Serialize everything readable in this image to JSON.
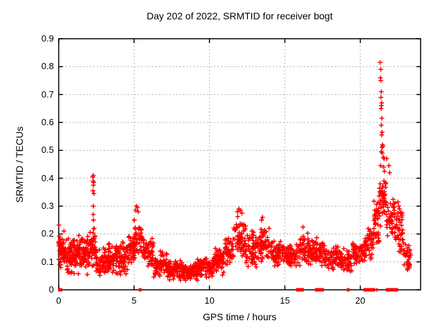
{
  "title": "Day 202 of 2022, SRMTID for receiver bogt",
  "axes": {
    "xlabel": "GPS time / hours",
    "ylabel": "SRMTID / TECUs",
    "xtick_labels": [
      "0",
      "5",
      "10",
      "15",
      "20"
    ],
    "ytick_labels": [
      "0",
      "0.1",
      "0.2",
      "0.3",
      "0.4",
      "0.5",
      "0.6",
      "0.7",
      "0.8",
      "0.9"
    ]
  },
  "colors": {
    "marker": "#ff0000",
    "grid": "#a9a9a9",
    "border": "#000000",
    "text": "#000000",
    "background": "#ffffff"
  },
  "chart_data": {
    "type": "scatter",
    "title": "Day 202 of 2022, SRMTID for receiver bogt",
    "xlabel": "GPS time / hours",
    "ylabel": "SRMTID / TECUs",
    "xlim": [
      0,
      24
    ],
    "ylim": [
      0,
      0.9
    ],
    "xticks": [
      0,
      5,
      10,
      15,
      20
    ],
    "yticks": [
      0,
      0.1,
      0.2,
      0.3,
      0.4,
      0.5,
      0.6,
      0.7,
      0.8,
      0.9
    ],
    "grid": true,
    "legend": false,
    "marker": "+",
    "marker_color": "#ff0000",
    "seed": 42,
    "band_segments_comment": "dense noisy scatter described as bands: [x_start_h, x_end_h, y_low_TECU, y_high_TECU, n_points]",
    "band_segments": [
      [
        0.0,
        0.5,
        0.06,
        0.22,
        55
      ],
      [
        0.5,
        1.2,
        0.05,
        0.19,
        70
      ],
      [
        1.2,
        2.1,
        0.05,
        0.21,
        90
      ],
      [
        2.1,
        2.45,
        0.07,
        0.24,
        30
      ],
      [
        2.45,
        3.1,
        0.04,
        0.16,
        55
      ],
      [
        3.1,
        4.0,
        0.04,
        0.17,
        80
      ],
      [
        4.0,
        4.6,
        0.05,
        0.18,
        55
      ],
      [
        4.6,
        5.0,
        0.08,
        0.22,
        40
      ],
      [
        5.0,
        5.5,
        0.1,
        0.27,
        45
      ],
      [
        5.5,
        6.3,
        0.07,
        0.21,
        60
      ],
      [
        6.3,
        7.2,
        0.04,
        0.14,
        70
      ],
      [
        7.2,
        8.2,
        0.03,
        0.11,
        80
      ],
      [
        8.2,
        9.2,
        0.03,
        0.1,
        80
      ],
      [
        9.2,
        10.2,
        0.04,
        0.12,
        80
      ],
      [
        10.2,
        11.0,
        0.05,
        0.15,
        65
      ],
      [
        11.0,
        11.6,
        0.08,
        0.2,
        50
      ],
      [
        11.6,
        12.4,
        0.11,
        0.27,
        60
      ],
      [
        12.4,
        13.2,
        0.07,
        0.22,
        60
      ],
      [
        13.2,
        14.0,
        0.09,
        0.23,
        60
      ],
      [
        14.0,
        15.2,
        0.08,
        0.18,
        85
      ],
      [
        15.2,
        16.0,
        0.07,
        0.17,
        60
      ],
      [
        16.0,
        16.6,
        0.08,
        0.21,
        45
      ],
      [
        16.6,
        17.6,
        0.08,
        0.19,
        70
      ],
      [
        17.6,
        18.7,
        0.07,
        0.16,
        75
      ],
      [
        18.7,
        19.5,
        0.06,
        0.15,
        55
      ],
      [
        19.5,
        20.3,
        0.08,
        0.17,
        55
      ],
      [
        20.3,
        20.9,
        0.1,
        0.24,
        45
      ],
      [
        20.9,
        21.25,
        0.14,
        0.33,
        35
      ],
      [
        21.25,
        21.75,
        0.22,
        0.42,
        45
      ],
      [
        21.75,
        22.35,
        0.18,
        0.35,
        45
      ],
      [
        22.35,
        22.85,
        0.11,
        0.31,
        40
      ],
      [
        22.85,
        23.35,
        0.06,
        0.2,
        35
      ]
    ],
    "peak_points_comment": "individually readable outlier points [x_h, y_TECU]",
    "peak_points": [
      [
        0.02,
        0.232
      ],
      [
        2.26,
        0.405
      ],
      [
        2.3,
        0.41
      ],
      [
        2.28,
        0.39
      ],
      [
        2.32,
        0.385
      ],
      [
        2.3,
        0.375
      ],
      [
        2.27,
        0.355
      ],
      [
        2.33,
        0.345
      ],
      [
        2.3,
        0.3
      ],
      [
        2.29,
        0.27
      ],
      [
        2.31,
        0.25
      ],
      [
        2.35,
        0.22
      ],
      [
        5.15,
        0.3
      ],
      [
        5.22,
        0.295
      ],
      [
        5.1,
        0.285
      ],
      [
        5.27,
        0.28
      ],
      [
        11.95,
        0.29
      ],
      [
        12.05,
        0.285
      ],
      [
        11.85,
        0.28
      ],
      [
        12.15,
        0.275
      ],
      [
        13.52,
        0.26
      ],
      [
        13.45,
        0.25
      ],
      [
        16.2,
        0.225
      ],
      [
        21.32,
        0.815
      ],
      [
        21.36,
        0.79
      ],
      [
        21.34,
        0.76
      ],
      [
        21.36,
        0.75
      ],
      [
        21.4,
        0.71
      ],
      [
        21.37,
        0.69
      ],
      [
        21.42,
        0.67
      ],
      [
        21.4,
        0.66
      ],
      [
        21.38,
        0.65
      ],
      [
        21.43,
        0.615
      ],
      [
        21.4,
        0.59
      ],
      [
        21.45,
        0.565
      ],
      [
        21.42,
        0.555
      ],
      [
        21.47,
        0.52
      ],
      [
        21.5,
        0.515
      ],
      [
        21.44,
        0.51
      ],
      [
        21.4,
        0.495
      ],
      [
        21.46,
        0.49
      ],
      [
        21.52,
        0.475
      ],
      [
        21.58,
        0.47
      ],
      [
        21.75,
        0.47
      ],
      [
        21.35,
        0.445
      ],
      [
        21.55,
        0.44
      ],
      [
        21.9,
        0.445
      ],
      [
        21.6,
        0.425
      ],
      [
        21.95,
        0.42
      ],
      [
        22.5,
        0.315
      ],
      [
        22.55,
        0.3
      ],
      [
        22.6,
        0.29
      ]
    ],
    "zero_markers_comment": "solid red blocks on the y=0 axis line: {x_h, width_px}",
    "zero_markers": [
      {
        "x": 0.1,
        "w": 6
      },
      {
        "x": 5.35,
        "w": 2
      },
      {
        "x": 5.45,
        "w": 2
      },
      {
        "x": 15.9,
        "w": 7
      },
      {
        "x": 16.0,
        "w": 7
      },
      {
        "x": 16.1,
        "w": 7
      },
      {
        "x": 17.15,
        "w": 7
      },
      {
        "x": 17.3,
        "w": 7
      },
      {
        "x": 17.5,
        "w": 4
      },
      {
        "x": 19.15,
        "w": 2
      },
      {
        "x": 19.25,
        "w": 2
      },
      {
        "x": 20.3,
        "w": 4
      },
      {
        "x": 20.45,
        "w": 6
      },
      {
        "x": 20.6,
        "w": 6
      },
      {
        "x": 20.75,
        "w": 6
      },
      {
        "x": 20.9,
        "w": 4
      },
      {
        "x": 21.1,
        "w": 2
      },
      {
        "x": 21.85,
        "w": 7
      },
      {
        "x": 21.95,
        "w": 7
      },
      {
        "x": 22.05,
        "w": 7
      },
      {
        "x": 22.15,
        "w": 7
      },
      {
        "x": 22.25,
        "w": 7
      },
      {
        "x": 22.35,
        "w": 7
      }
    ]
  }
}
